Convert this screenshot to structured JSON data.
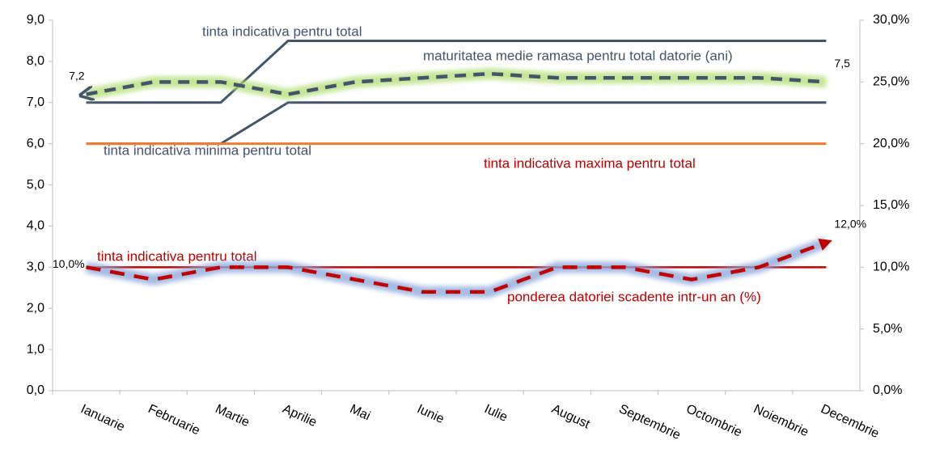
{
  "chart_data": {
    "type": "line",
    "categories": [
      "Ianuarie",
      "Februarie",
      "Martie",
      "Aprilie",
      "Mai",
      "Iunie",
      "Iulie",
      "August",
      "Septembrie",
      "Octombrie",
      "Noiembrie",
      "Decembrie"
    ],
    "ylim": [
      0,
      9
    ],
    "yticks": [
      {
        "value": 0,
        "label": "0,0"
      },
      {
        "value": 1,
        "label": "1,0"
      },
      {
        "value": 2,
        "label": "2,0"
      },
      {
        "value": 3,
        "label": "3,0"
      },
      {
        "value": 4,
        "label": "4,0"
      },
      {
        "value": 5,
        "label": "5,0"
      },
      {
        "value": 6,
        "label": "6,0"
      },
      {
        "value": 7,
        "label": "7,0"
      },
      {
        "value": 8,
        "label": "8,0"
      },
      {
        "value": 9,
        "label": "9,0"
      }
    ],
    "y2lim": [
      0,
      30
    ],
    "y2ticks": [
      {
        "value": 0,
        "label": "0,0%"
      },
      {
        "value": 5,
        "label": "5,0%"
      },
      {
        "value": 10,
        "label": "10,0%"
      },
      {
        "value": 15,
        "label": "15,0%"
      },
      {
        "value": 20,
        "label": "20,0%"
      },
      {
        "value": 25,
        "label": "25,0%"
      },
      {
        "value": 30,
        "label": "30,0%"
      }
    ],
    "grid": false,
    "series": [
      {
        "name": "tinta indicativa pentru total",
        "color": "#44546a",
        "values": [
          7,
          7,
          7,
          8.5,
          8.5,
          8.5,
          8.5,
          8.5,
          8.5,
          8.5,
          8.5,
          8.5
        ]
      },
      {
        "name": "tinta indicativa minima pentru total",
        "color": "#44546a",
        "values": [
          6,
          6,
          6,
          7,
          7,
          7,
          7,
          7,
          7,
          7,
          7,
          7
        ]
      },
      {
        "name": "tinta indicativa maxima pentru total",
        "color": "#ed7d31",
        "values": [
          6,
          6,
          6,
          6,
          6,
          6,
          6,
          6,
          6,
          6,
          6,
          6
        ]
      },
      {
        "name": "maturitatea medie ramasa pentru total datorie (ani)",
        "color": "#44546a",
        "dashed": true,
        "values": [
          7.2,
          7.5,
          7.5,
          7.2,
          7.5,
          7.6,
          7.7,
          7.6,
          7.6,
          7.6,
          7.6,
          7.5
        ],
        "value_labels": [
          "7,2",
          null,
          null,
          null,
          null,
          null,
          null,
          null,
          null,
          null,
          null,
          "7,5"
        ]
      },
      {
        "name": "tinta indicativa pentru total",
        "color": "#c00000",
        "axis": "y2",
        "values": [
          10,
          10,
          10,
          10,
          10,
          10,
          10,
          10,
          10,
          10,
          10,
          10
        ]
      },
      {
        "name": "ponderea datoriei scadente intr-un an (%)",
        "color": "#c00000",
        "axis": "y2",
        "dashed": true,
        "values": [
          10,
          9,
          10,
          10,
          9,
          8,
          8,
          10,
          10,
          9,
          10,
          12
        ],
        "value_labels": [
          "10,0%",
          null,
          null,
          null,
          null,
          null,
          null,
          null,
          null,
          null,
          null,
          "12,0%"
        ]
      }
    ]
  }
}
